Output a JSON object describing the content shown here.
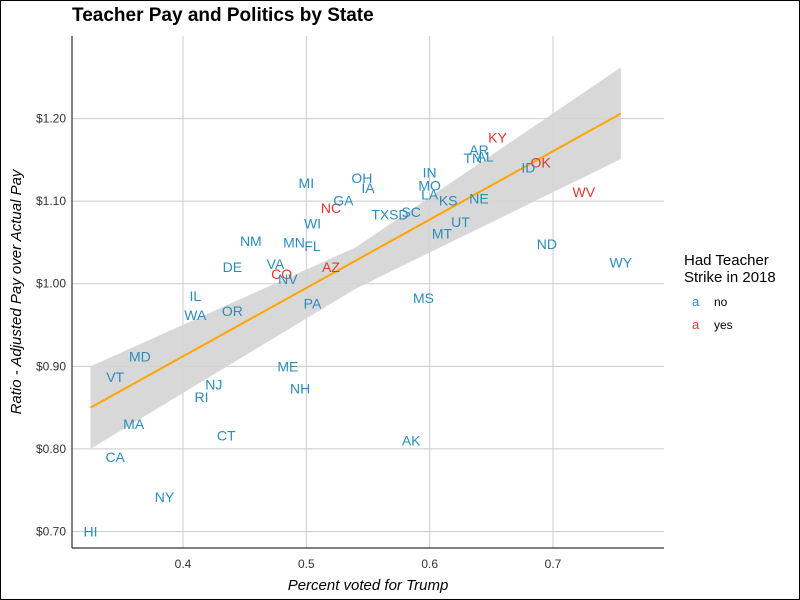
{
  "chart_data": {
    "type": "scatter",
    "title": "Teacher Pay and Politics by State",
    "xlabel": "Percent voted for Trump",
    "ylabel": "Ratio - Adjusted Pay over Actual Pay",
    "xlim": [
      0.31,
      0.79
    ],
    "ylim": [
      0.68,
      1.3
    ],
    "x_ticks": [
      0.4,
      0.5,
      0.6,
      0.7
    ],
    "x_tick_labels": [
      "0.4",
      "0.5",
      "0.6",
      "0.7"
    ],
    "y_ticks": [
      0.7,
      0.8,
      0.9,
      1.0,
      1.1,
      1.2
    ],
    "y_tick_labels": [
      "$0.70",
      "$0.80",
      "$0.90",
      "$1.00",
      "$1.10",
      "$1.20"
    ],
    "grid": true,
    "legend": {
      "title": "Had Teacher\nStrike in 2018",
      "placement": "right",
      "key_glyph": "a",
      "entries": [
        {
          "label": "no",
          "color": "#2b8cbe"
        },
        {
          "label": "yes",
          "color": "#e3372c"
        }
      ]
    },
    "colors": {
      "no": "#2b8cbe",
      "yes": "#e3372c",
      "trend": "#ffa500",
      "band": "#d4d4d4"
    },
    "trend": {
      "x": [
        0.325,
        0.755
      ],
      "y": [
        0.85,
        1.206
      ]
    },
    "band": {
      "x": [
        0.325,
        0.54,
        0.755
      ],
      "upper": [
        0.9,
        1.044,
        1.262
      ],
      "lower": [
        0.8,
        0.994,
        1.151
      ]
    },
    "points": [
      {
        "label": "HI",
        "x": 0.325,
        "y": 0.7,
        "strike": "no"
      },
      {
        "label": "CA",
        "x": 0.345,
        "y": 0.79,
        "strike": "no"
      },
      {
        "label": "MA",
        "x": 0.36,
        "y": 0.83,
        "strike": "no"
      },
      {
        "label": "VT",
        "x": 0.345,
        "y": 0.887,
        "strike": "no"
      },
      {
        "label": "MD",
        "x": 0.365,
        "y": 0.912,
        "strike": "no"
      },
      {
        "label": "NY",
        "x": 0.385,
        "y": 0.742,
        "strike": "no"
      },
      {
        "label": "RI",
        "x": 0.415,
        "y": 0.863,
        "strike": "no"
      },
      {
        "label": "NJ",
        "x": 0.425,
        "y": 0.878,
        "strike": "no"
      },
      {
        "label": "CT",
        "x": 0.435,
        "y": 0.816,
        "strike": "no"
      },
      {
        "label": "IL",
        "x": 0.41,
        "y": 0.985,
        "strike": "no"
      },
      {
        "label": "WA",
        "x": 0.41,
        "y": 0.962,
        "strike": "no"
      },
      {
        "label": "OR",
        "x": 0.44,
        "y": 0.967,
        "strike": "no"
      },
      {
        "label": "DE",
        "x": 0.44,
        "y": 1.02,
        "strike": "no"
      },
      {
        "label": "NM",
        "x": 0.455,
        "y": 1.052,
        "strike": "no"
      },
      {
        "label": "VA",
        "x": 0.475,
        "y": 1.024,
        "strike": "no"
      },
      {
        "label": "CO",
        "x": 0.48,
        "y": 1.012,
        "strike": "yes"
      },
      {
        "label": "NV",
        "x": 0.485,
        "y": 1.006,
        "strike": "no"
      },
      {
        "label": "MN",
        "x": 0.49,
        "y": 1.05,
        "strike": "no"
      },
      {
        "label": "FL",
        "x": 0.505,
        "y": 1.046,
        "strike": "no"
      },
      {
        "label": "ME",
        "x": 0.485,
        "y": 0.9,
        "strike": "no"
      },
      {
        "label": "NH",
        "x": 0.495,
        "y": 0.873,
        "strike": "no"
      },
      {
        "label": "PA",
        "x": 0.505,
        "y": 0.976,
        "strike": "no"
      },
      {
        "label": "MI",
        "x": 0.5,
        "y": 1.122,
        "strike": "no"
      },
      {
        "label": "WI",
        "x": 0.505,
        "y": 1.073,
        "strike": "no"
      },
      {
        "label": "AZ",
        "x": 0.52,
        "y": 1.02,
        "strike": "yes"
      },
      {
        "label": "NC",
        "x": 0.52,
        "y": 1.092,
        "strike": "yes"
      },
      {
        "label": "GA",
        "x": 0.53,
        "y": 1.101,
        "strike": "no"
      },
      {
        "label": "OH",
        "x": 0.545,
        "y": 1.128,
        "strike": "no"
      },
      {
        "label": "IA",
        "x": 0.55,
        "y": 1.116,
        "strike": "no"
      },
      {
        "label": "TX",
        "x": 0.56,
        "y": 1.084,
        "strike": "no"
      },
      {
        "label": "SD",
        "x": 0.575,
        "y": 1.084,
        "strike": "no"
      },
      {
        "label": "SC",
        "x": 0.585,
        "y": 1.087,
        "strike": "no"
      },
      {
        "label": "MS",
        "x": 0.595,
        "y": 0.983,
        "strike": "no"
      },
      {
        "label": "AK",
        "x": 0.585,
        "y": 0.81,
        "strike": "no"
      },
      {
        "label": "IN",
        "x": 0.6,
        "y": 1.135,
        "strike": "no"
      },
      {
        "label": "MO",
        "x": 0.6,
        "y": 1.119,
        "strike": "no"
      },
      {
        "label": "LA",
        "x": 0.6,
        "y": 1.108,
        "strike": "no"
      },
      {
        "label": "KS",
        "x": 0.615,
        "y": 1.101,
        "strike": "no"
      },
      {
        "label": "MT",
        "x": 0.61,
        "y": 1.061,
        "strike": "no"
      },
      {
        "label": "UT",
        "x": 0.625,
        "y": 1.075,
        "strike": "no"
      },
      {
        "label": "NE",
        "x": 0.64,
        "y": 1.103,
        "strike": "no"
      },
      {
        "label": "TN",
        "x": 0.635,
        "y": 1.152,
        "strike": "no"
      },
      {
        "label": "AR",
        "x": 0.64,
        "y": 1.162,
        "strike": "no"
      },
      {
        "label": "AL",
        "x": 0.645,
        "y": 1.154,
        "strike": "no"
      },
      {
        "label": "KY",
        "x": 0.655,
        "y": 1.177,
        "strike": "yes"
      },
      {
        "label": "OK",
        "x": 0.69,
        "y": 1.147,
        "strike": "yes"
      },
      {
        "label": "ID",
        "x": 0.68,
        "y": 1.141,
        "strike": "no"
      },
      {
        "label": "ND",
        "x": 0.695,
        "y": 1.048,
        "strike": "no"
      },
      {
        "label": "WV",
        "x": 0.725,
        "y": 1.111,
        "strike": "yes"
      },
      {
        "label": "WY",
        "x": 0.755,
        "y": 1.026,
        "strike": "no"
      }
    ]
  }
}
